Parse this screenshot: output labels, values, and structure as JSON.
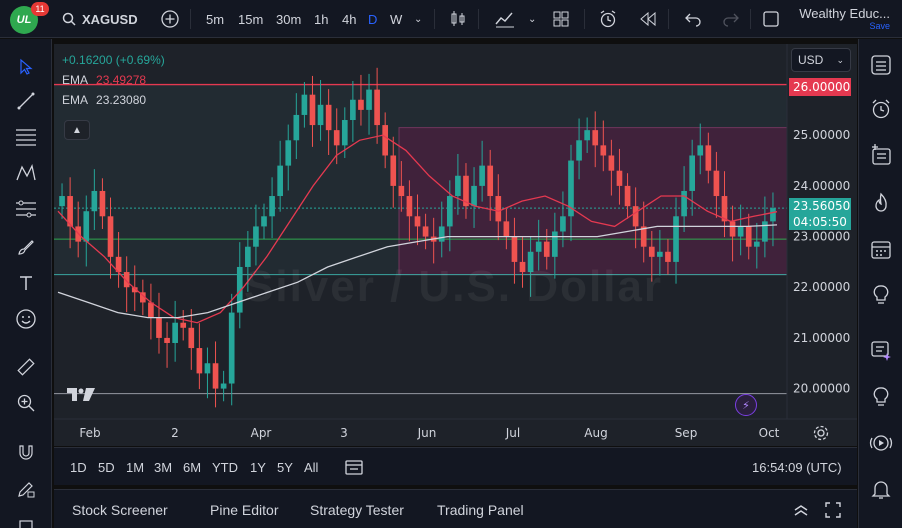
{
  "header": {
    "logo_text": "UL",
    "notification_count": "11",
    "symbol": "XAGUSD",
    "add_symbol_icon": "plus-circle-icon",
    "intervals": [
      "5m",
      "15m",
      "30m",
      "1h",
      "4h",
      "D",
      "W"
    ],
    "active_interval": "D",
    "account_name": "Wealthy Educ...",
    "account_status": "Save"
  },
  "legend": {
    "change": "+0.16200 (+0.69%)",
    "ema1_label": "EMA",
    "ema1_value": "23.49278",
    "ema2_label": "EMA",
    "ema2_value": "23.23080"
  },
  "currency": "USD",
  "watermark": "Silver / U.S. Dollar",
  "price_tags": {
    "resistance": "26.00000",
    "current_price": "23.56050",
    "countdown": "04:05:50"
  },
  "colors": {
    "up": "#26a69a",
    "down": "#ef5350",
    "resistance_line": "#e53950",
    "support_line": "#2fa84f",
    "ema_fast": "#e53950",
    "ema_slow": "#d1d4dc",
    "box_fill": "#4a1f3f",
    "accent": "#2962ff"
  },
  "range_buttons": [
    "1D",
    "5D",
    "1M",
    "3M",
    "6M",
    "YTD",
    "1Y",
    "5Y",
    "All"
  ],
  "clock": "16:54:09 (UTC)",
  "bottom_tabs": [
    "Stock Screener",
    "Pine Editor",
    "Strategy Tester",
    "Trading Panel"
  ],
  "chart_data": {
    "type": "candlestick",
    "price_ticks": [
      "25.00000",
      "24.00000",
      "23.00000",
      "22.00000",
      "21.00000",
      "20.00000"
    ],
    "time_ticks": [
      "Feb",
      "2",
      "Apr",
      "3",
      "Jun",
      "Jul",
      "Aug",
      "Sep",
      "Oct"
    ],
    "ylim": [
      19.4,
      26.8
    ],
    "horizontal_levels": {
      "resistance": 26.0,
      "support": 22.25,
      "mid": 22.95,
      "low": 19.9
    },
    "box": {
      "from": "Jun",
      "to": "Sep",
      "top": 25.15,
      "bottom": 22.25
    },
    "closes": [
      23.8,
      23.2,
      22.9,
      23.5,
      23.9,
      23.4,
      22.6,
      22.3,
      22.0,
      21.9,
      21.7,
      21.4,
      21.0,
      20.9,
      21.3,
      21.2,
      20.8,
      20.3,
      20.5,
      20.0,
      20.1,
      21.5,
      22.4,
      22.8,
      23.2,
      23.4,
      23.8,
      24.4,
      24.9,
      25.4,
      25.8,
      25.2,
      25.6,
      25.1,
      24.8,
      25.3,
      25.7,
      25.5,
      25.9,
      25.2,
      24.6,
      24.0,
      23.8,
      23.4,
      23.2,
      23.0,
      22.9,
      23.2,
      23.8,
      24.2,
      23.6,
      24.0,
      24.4,
      23.8,
      23.3,
      23.0,
      22.5,
      22.3,
      22.7,
      22.9,
      22.6,
      23.1,
      23.4,
      24.5,
      24.9,
      25.1,
      24.8,
      24.6,
      24.3,
      24.0,
      23.6,
      23.2,
      22.8,
      22.6,
      22.7,
      22.5,
      23.4,
      23.9,
      24.6,
      24.8,
      24.3,
      23.8,
      23.3,
      23.0,
      23.2,
      22.8,
      22.9,
      23.3,
      23.56
    ],
    "ema_fast": [
      23.5,
      23.0,
      22.6,
      22.1,
      21.7,
      21.4,
      21.3,
      21.5,
      22.0,
      22.6,
      23.3,
      24.0,
      24.6,
      24.9,
      25.0,
      24.7,
      24.2,
      23.8,
      23.6,
      23.5,
      23.7,
      23.8,
      23.6,
      23.3,
      23.2,
      23.5,
      23.8,
      23.8,
      23.5,
      23.3,
      23.4,
      23.49
    ],
    "ema_slow": [
      21.9,
      21.7,
      21.5,
      21.4,
      21.4,
      21.5,
      21.7,
      21.9,
      22.1,
      22.4,
      22.6,
      22.8,
      22.9,
      23.0,
      23.0,
      23.0,
      23.0,
      23.0,
      23.0,
      23.1,
      23.2,
      23.2,
      23.2,
      23.2,
      23.23
    ]
  }
}
